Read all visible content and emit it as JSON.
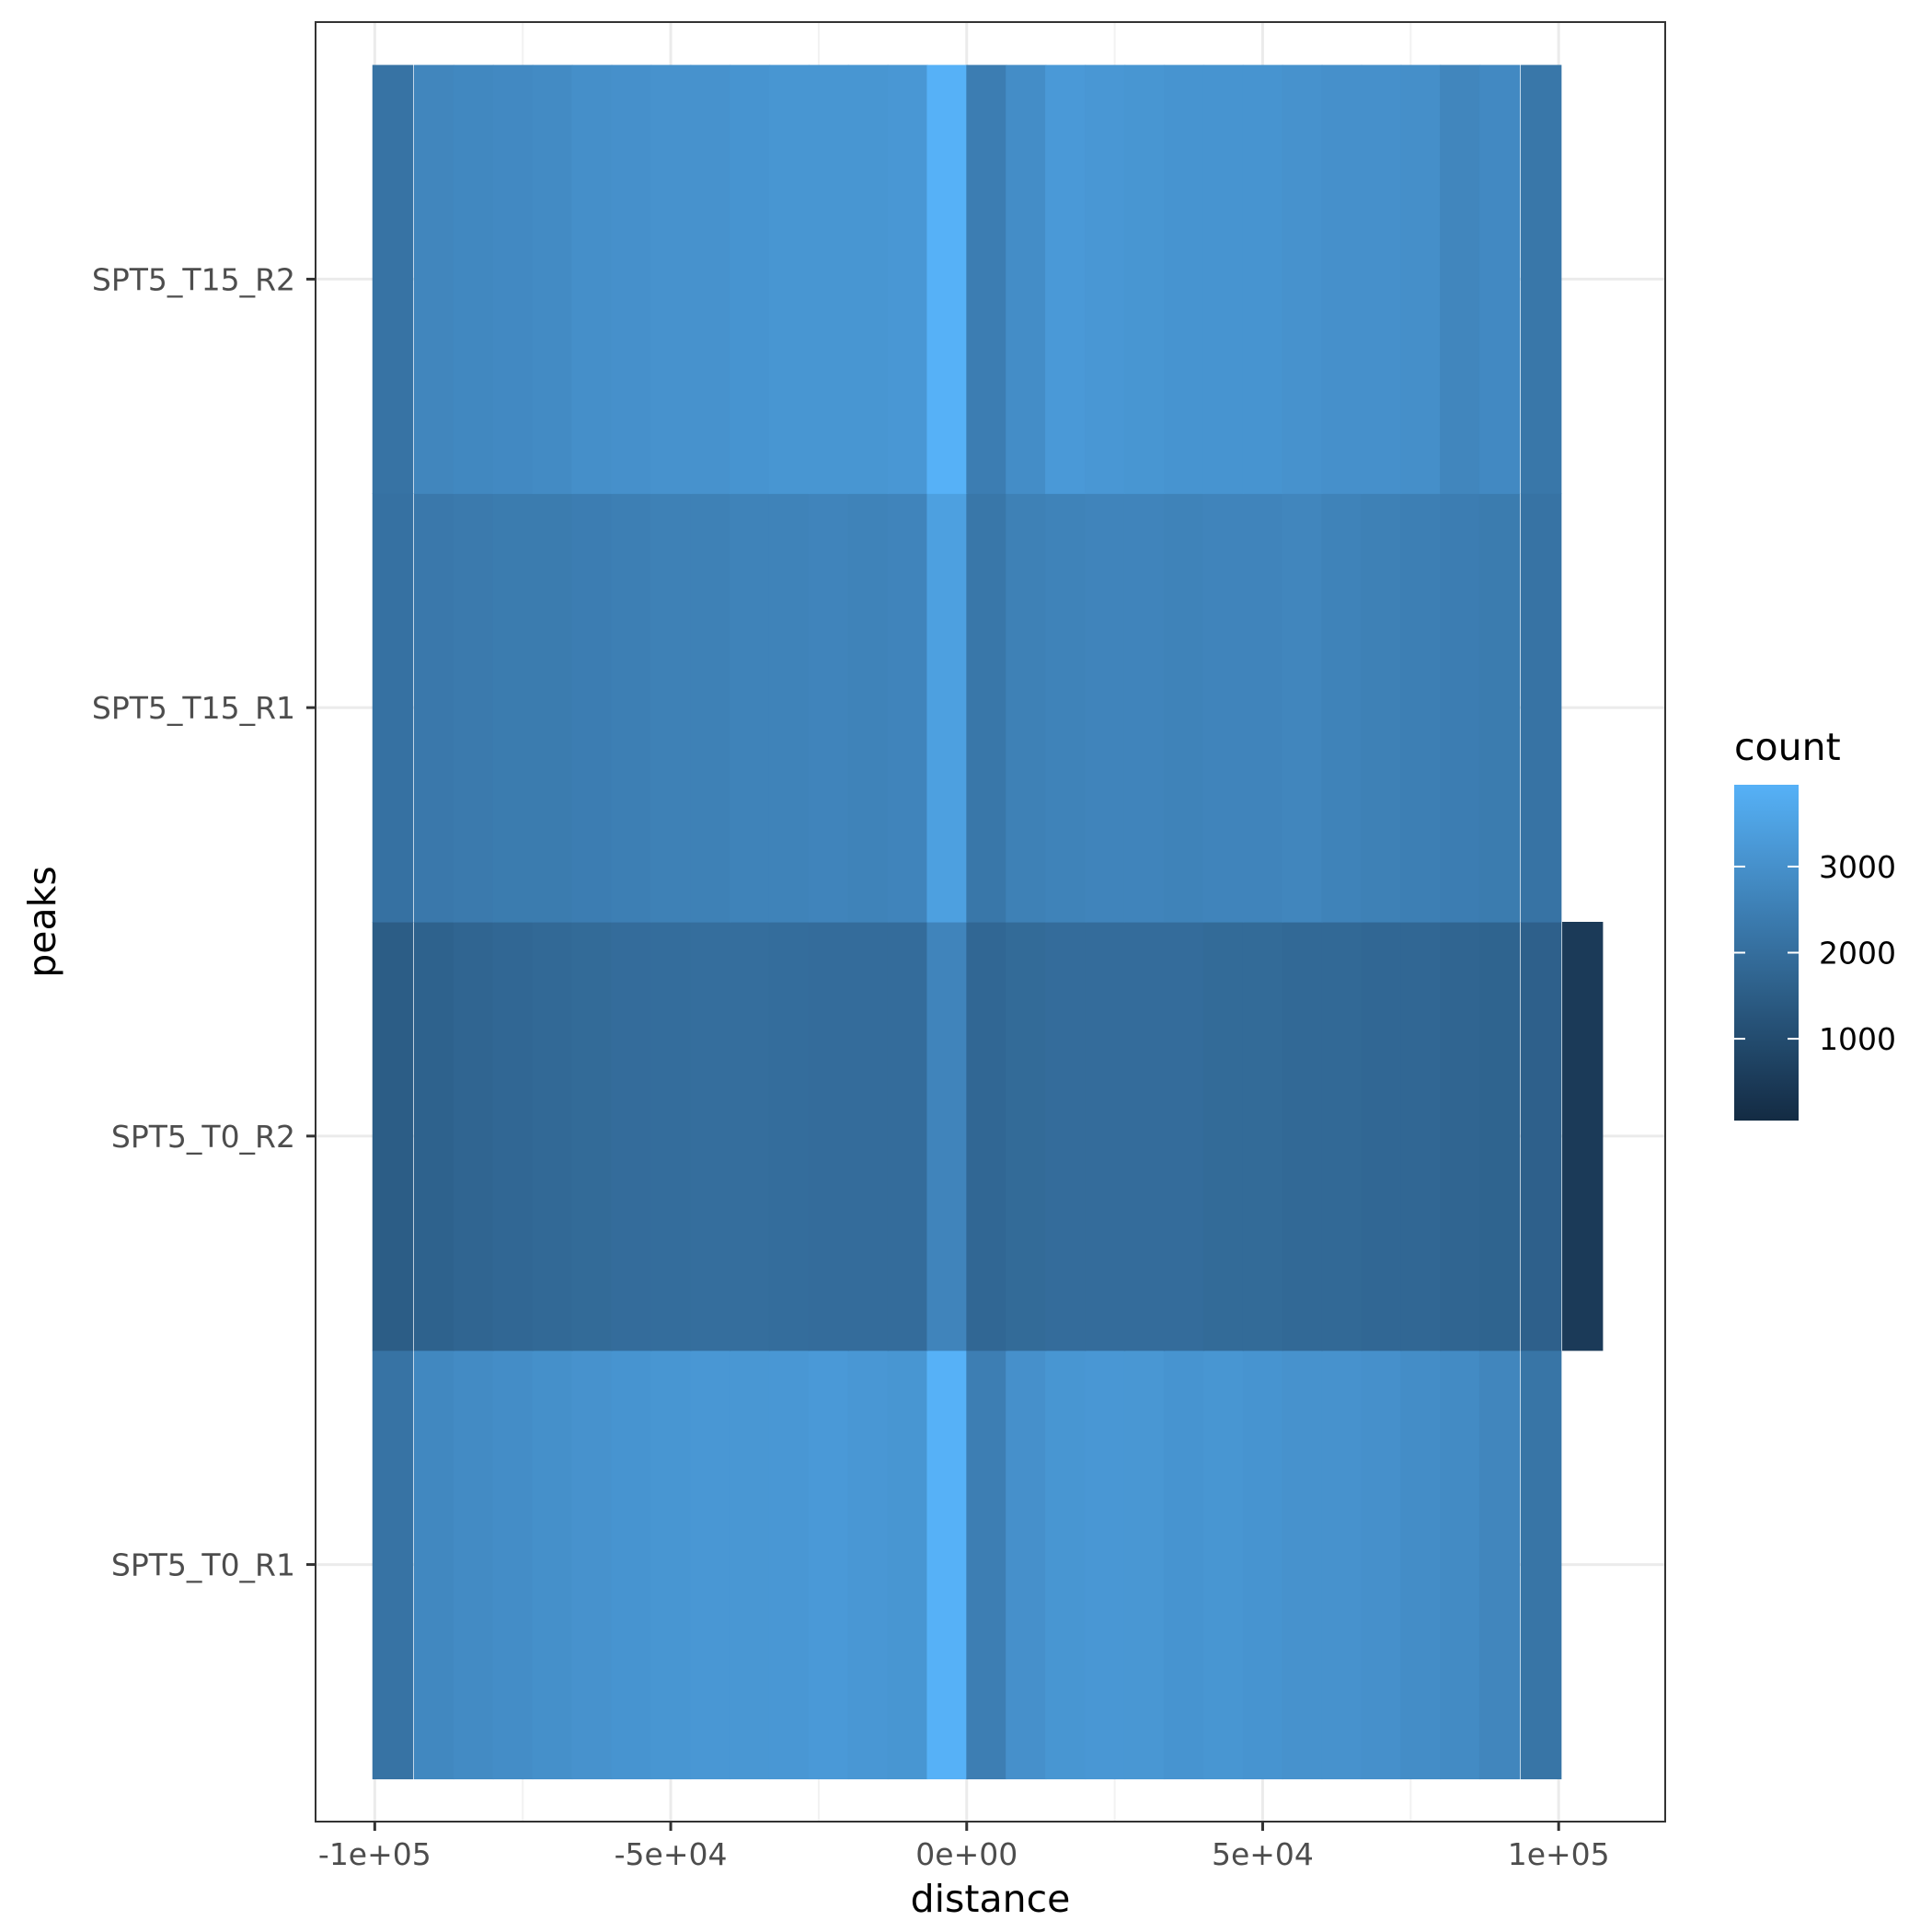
{
  "chart_data": {
    "type": "heatmap",
    "title": "",
    "xlabel": "distance",
    "ylabel": "peaks",
    "xlim": [
      -110000,
      118000
    ],
    "x_ticks": [
      {
        "value": -100000,
        "label": "-1e+05"
      },
      {
        "value": -50000,
        "label": "-5e+04"
      },
      {
        "value": 0,
        "label": "0e+00"
      },
      {
        "value": 50000,
        "label": "5e+04"
      },
      {
        "value": 100000,
        "label": "1e+05"
      }
    ],
    "y_categories": [
      "SPT5_T0_R1",
      "SPT5_T0_R2",
      "SPT5_T15_R1",
      "SPT5_T15_R2"
    ],
    "x_bins": [
      -97000,
      -90000,
      -83333,
      -76667,
      -70000,
      -63333,
      -56667,
      -50000,
      -43333,
      -36667,
      -30000,
      -23333,
      -16667,
      -10000,
      -3333,
      3333,
      10000,
      16667,
      23333,
      30000,
      36667,
      43333,
      50000,
      56667,
      63333,
      70000,
      76667,
      83333,
      90000,
      97000,
      104000
    ],
    "bin_width": 6800,
    "counts": [
      [
        2150,
        2750,
        2850,
        2900,
        2980,
        3050,
        3100,
        3150,
        3200,
        3180,
        3200,
        3250,
        3200,
        3150,
        3950,
        2480,
        3000,
        3150,
        3200,
        3180,
        3100,
        3150,
        3100,
        3050,
        3050,
        3000,
        2900,
        2850,
        2700,
        2200,
        null
      ],
      [
        1500,
        1650,
        1750,
        1800,
        1850,
        1900,
        1950,
        1980,
        2000,
        2000,
        1980,
        1950,
        1950,
        1950,
        2650,
        1800,
        1900,
        1950,
        1950,
        1950,
        1950,
        1900,
        1900,
        1850,
        1850,
        1800,
        1800,
        1750,
        1700,
        1600,
        500
      ],
      [
        2100,
        2300,
        2350,
        2400,
        2400,
        2450,
        2500,
        2550,
        2550,
        2600,
        2600,
        2650,
        2600,
        2650,
        3450,
        2250,
        2550,
        2600,
        2650,
        2650,
        2600,
        2650,
        2650,
        2700,
        2600,
        2550,
        2500,
        2450,
        2400,
        2150,
        null
      ],
      [
        2150,
        2700,
        2750,
        2800,
        2850,
        2950,
        3000,
        3050,
        3050,
        3100,
        3150,
        3150,
        3150,
        3200,
        3950,
        2450,
        2900,
        3250,
        3200,
        3150,
        3100,
        3100,
        3100,
        3050,
        3000,
        3000,
        2950,
        2700,
        2800,
        2250,
        null
      ]
    ],
    "color_scale": {
      "low": "#132B43",
      "high": "#56B1F7",
      "min": 50,
      "max": 3950
    },
    "legend": {
      "title": "count",
      "placement": "right",
      "ticks": [
        {
          "value": 1000,
          "label": "1000"
        },
        {
          "value": 2000,
          "label": "2000"
        },
        {
          "value": 3000,
          "label": "3000"
        }
      ]
    },
    "grid": true,
    "theme": "bw"
  }
}
